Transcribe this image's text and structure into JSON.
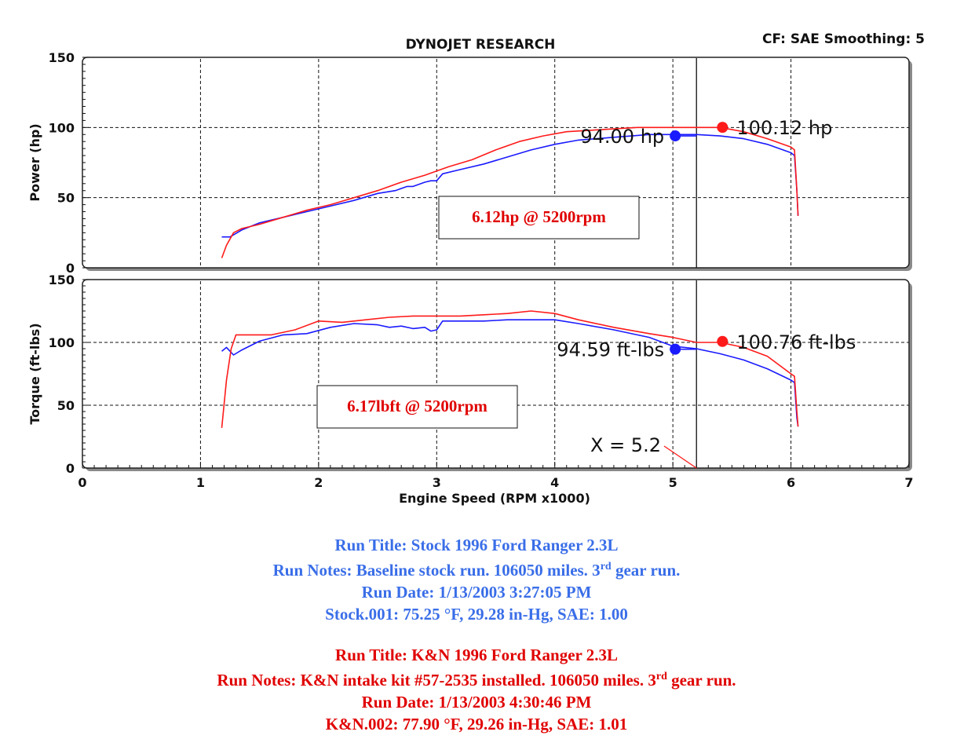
{
  "chart_data": {
    "type": "line",
    "title": "DYNOJET RESEARCH",
    "header_right": "CF: SAE  Smoothing: 5",
    "xlabel": "Engine Speed (RPM x1000)",
    "xlim": [
      0,
      7
    ],
    "xticks": [
      "0",
      "1",
      "2",
      "3",
      "4",
      "5",
      "6",
      "7"
    ],
    "grid": true,
    "colors": {
      "stock": "#1a1aff",
      "kn": "#ff1a1a",
      "annotation_text": "#e00000"
    },
    "cursor_x": 5.2,
    "cursor_label": "X = 5.2",
    "panels": [
      {
        "name": "power",
        "ylabel": "Power (hp)",
        "ylim": [
          0,
          150
        ],
        "yticks": [
          "0",
          "50",
          "100",
          "150"
        ],
        "annotation": "6.12hp @ 5200rpm",
        "series": [
          {
            "key": "stock",
            "x": [
              1.18,
              1.25,
              1.35,
              1.5,
              1.7,
              1.9,
              2.1,
              2.3,
              2.5,
              2.65,
              2.75,
              2.8,
              2.9,
              2.95,
              3.0,
              3.05,
              3.2,
              3.4,
              3.6,
              3.8,
              4.0,
              4.2,
              4.5,
              4.8,
              5.0,
              5.2,
              5.4,
              5.6,
              5.8,
              6.0,
              6.03,
              6.05,
              6.06
            ],
            "y": [
              22,
              22,
              27,
              32,
              36,
              40,
              44,
              48,
              53,
              55,
              58,
              58,
              61,
              62,
              62,
              67,
              70,
              74,
              79,
              84,
              88,
              91,
              93,
              95,
              95,
              95,
              94,
              92,
              88,
              82,
              80,
              55,
              37
            ]
          },
          {
            "key": "kn",
            "x": [
              1.18,
              1.22,
              1.28,
              1.35,
              1.5,
              1.7,
              1.9,
              2.1,
              2.3,
              2.5,
              2.7,
              2.9,
              3.1,
              3.3,
              3.5,
              3.7,
              3.9,
              4.1,
              4.3,
              4.5,
              4.7,
              4.9,
              5.1,
              5.2,
              5.4,
              5.6,
              5.8,
              6.0,
              6.03,
              6.05,
              6.06
            ],
            "y": [
              7,
              16,
              25,
              28,
              31,
              36,
              41,
              45,
              50,
              55,
              61,
              66,
              72,
              77,
              84,
              90,
              94,
              97,
              98,
              99,
              100,
              100,
              100,
              100,
              100,
              97,
              92,
              86,
              84,
              55,
              37
            ]
          }
        ],
        "markers": [
          {
            "key": "stock",
            "x": 5.02,
            "y": 94.0,
            "label": "94.00 hp",
            "side": "left"
          },
          {
            "key": "kn",
            "x": 5.42,
            "y": 100.12,
            "label": "100.12 hp",
            "side": "right"
          }
        ]
      },
      {
        "name": "torque",
        "ylabel": "Torque (ft-lbs)",
        "ylim": [
          0,
          150
        ],
        "yticks": [
          "0",
          "50",
          "100",
          "150"
        ],
        "annotation": "6.17lbft @ 5200rpm",
        "series": [
          {
            "key": "stock",
            "x": [
              1.18,
              1.22,
              1.28,
              1.35,
              1.5,
              1.7,
              1.9,
              2.1,
              2.3,
              2.5,
              2.6,
              2.7,
              2.8,
              2.9,
              2.95,
              3.0,
              3.05,
              3.2,
              3.4,
              3.6,
              3.8,
              4.0,
              4.2,
              4.5,
              4.8,
              5.0,
              5.2,
              5.4,
              5.6,
              5.8,
              6.0,
              6.03,
              6.05,
              6.06
            ],
            "y": [
              93,
              96,
              90,
              94,
              101,
              106,
              107,
              112,
              115,
              114,
              112,
              113,
              111,
              112,
              109,
              110,
              117,
              117,
              117,
              118,
              118,
              118,
              115,
              110,
              104,
              97,
              95,
              91,
              86,
              79,
              70,
              68,
              40,
              33
            ],
            "wiggles": true
          },
          {
            "key": "kn",
            "x": [
              1.18,
              1.22,
              1.26,
              1.3,
              1.4,
              1.6,
              1.8,
              2.0,
              2.2,
              2.4,
              2.6,
              2.8,
              3.0,
              3.2,
              3.4,
              3.6,
              3.8,
              4.0,
              4.2,
              4.5,
              4.8,
              5.0,
              5.2,
              5.4,
              5.6,
              5.8,
              6.0,
              6.03,
              6.05,
              6.06
            ],
            "y": [
              32,
              70,
              95,
              106,
              106,
              106,
              110,
              117,
              116,
              118,
              120,
              121,
              121,
              121,
              122,
              123,
              125,
              123,
              118,
              112,
              107,
              104,
              100,
              100,
              96,
              89,
              75,
              73,
              45,
              33
            ]
          }
        ],
        "markers": [
          {
            "key": "stock",
            "x": 5.02,
            "y": 94.59,
            "label": "94.59 ft-lbs",
            "side": "left"
          },
          {
            "key": "kn",
            "x": 5.42,
            "y": 100.76,
            "label": "100.76 ft-lbs",
            "side": "right"
          }
        ]
      }
    ]
  },
  "notes": {
    "stock": {
      "color": "#3a6ee8",
      "run_title": "Run Title: Stock 1996 Ford Ranger 2.3L",
      "run_notes_pre": "Run Notes: Baseline stock run. 106050 miles. 3",
      "run_notes_sup": "rd",
      "run_notes_post": " gear run.",
      "run_date": "Run Date: 1/13/2003 3:27:05 PM",
      "conditions": "Stock.001: 75.25 °F, 29.28 in-Hg, SAE: 1.00"
    },
    "kn": {
      "color": "#e00000",
      "run_title": "Run Title: K&N 1996 Ford Ranger 2.3L",
      "run_notes_pre": "Run Notes: K&N intake kit #57-2535 installed. 106050 miles. 3",
      "run_notes_sup": "rd",
      "run_notes_post": " gear run.",
      "run_date": "Run Date: 1/13/2003 4:30:46 PM",
      "conditions": "K&N.002: 77.90 °F, 29.26 in-Hg, SAE: 1.01"
    }
  }
}
